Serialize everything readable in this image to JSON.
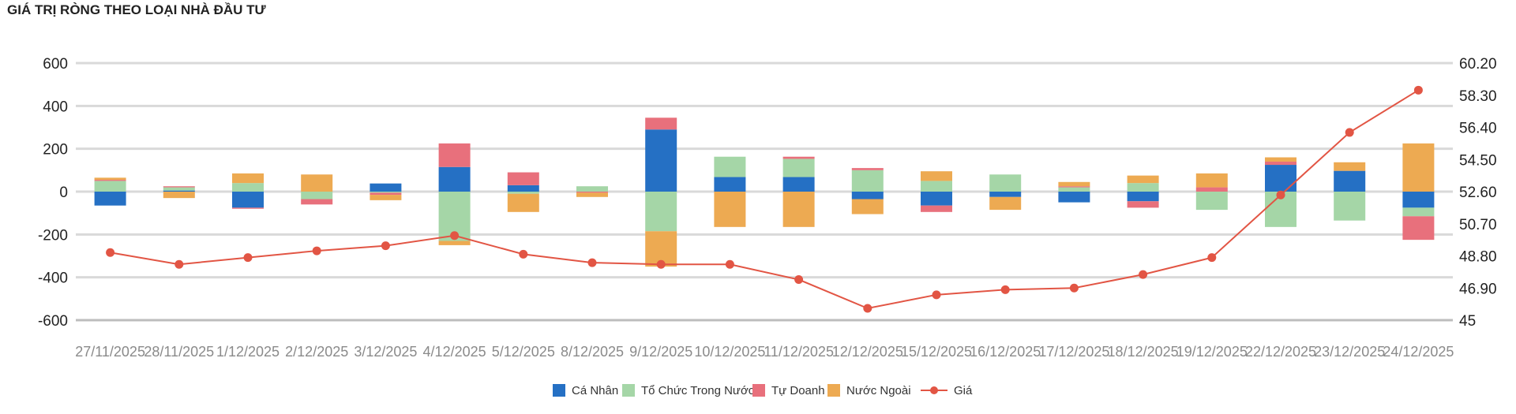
{
  "chart_data": {
    "type": "bar",
    "title": "GIÁ TRỊ RÒNG THEO LOẠI NHÀ ĐẦU TƯ",
    "stacked": true,
    "categories": [
      "27/11/2025",
      "28/11/2025",
      "1/12/2025",
      "2/12/2025",
      "3/12/2025",
      "4/12/2025",
      "5/12/2025",
      "8/12/2025",
      "9/12/2025",
      "10/12/2025",
      "11/12/2025",
      "12/12/2025",
      "15/12/2025",
      "16/12/2025",
      "17/12/2025",
      "18/12/2025",
      "19/12/2025",
      "22/12/2025",
      "23/12/2025",
      "24/12/2025"
    ],
    "y_left": {
      "ylim": [
        -600,
        600
      ],
      "ticks": [
        "600",
        "400",
        "200",
        "0",
        "-200",
        "-400",
        "-600"
      ]
    },
    "y_right": {
      "ylim": [
        45,
        60.2
      ],
      "ticks": [
        "60.20",
        "58.30",
        "56.40",
        "54.50",
        "52.60",
        "50.70",
        "48.80",
        "46.90",
        "45"
      ]
    },
    "grid": true,
    "legend_position": "bottom",
    "series": [
      {
        "name": "Cá Nhân",
        "color": "#2570c4",
        "axis": "left",
        "values": [
          -65,
          5,
          -75,
          0,
          38,
          115,
          30,
          0,
          290,
          68,
          68,
          -35,
          -65,
          -25,
          -50,
          -45,
          0,
          125,
          97,
          -75
        ]
      },
      {
        "name": "Tổ Chức Trong Nước",
        "color": "#a5d6a7",
        "axis": "left",
        "values": [
          50,
          15,
          40,
          -35,
          -5,
          -230,
          -10,
          25,
          -185,
          95,
          85,
          100,
          50,
          80,
          20,
          40,
          -85,
          -165,
          -135,
          -40
        ]
      },
      {
        "name": "Tự Doanh",
        "color": "#e8707c",
        "axis": "left",
        "values": [
          5,
          5,
          -5,
          -25,
          -10,
          110,
          60,
          -5,
          55,
          0,
          10,
          10,
          -30,
          0,
          5,
          -30,
          20,
          15,
          0,
          -110
        ]
      },
      {
        "name": "Nước Ngoài",
        "color": "#edaa52",
        "axis": "left",
        "values": [
          10,
          -30,
          45,
          80,
          -25,
          -20,
          -85,
          -20,
          -165,
          -165,
          -165,
          -70,
          45,
          -60,
          20,
          35,
          65,
          20,
          40,
          225
        ]
      },
      {
        "name": "Giá",
        "type": "line",
        "color": "#e25544",
        "axis": "right",
        "values": [
          49.0,
          48.3,
          48.7,
          49.1,
          49.4,
          50.0,
          48.9,
          48.4,
          48.3,
          48.3,
          47.4,
          45.7,
          46.5,
          46.8,
          46.9,
          47.7,
          48.7,
          52.4,
          56.1,
          58.6
        ]
      }
    ]
  }
}
